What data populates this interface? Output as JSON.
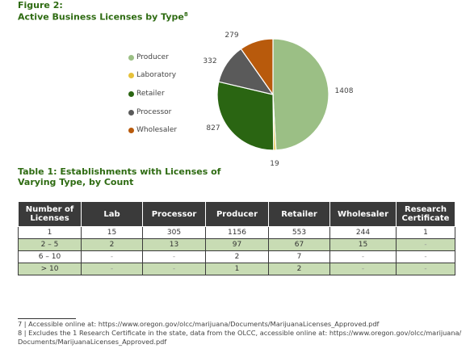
{
  "figure": {
    "label": "Figure 2:",
    "title": "Active Business Licenses by Type",
    "title_footnote_ref": "8"
  },
  "chart_data": {
    "type": "pie",
    "categories": [
      "Producer",
      "Laboratory",
      "Retailer",
      "Processor",
      "Wholesaler"
    ],
    "values": [
      1408,
      19,
      827,
      332,
      279
    ],
    "colors": [
      "#9bbf85",
      "#e6c13a",
      "#2a6512",
      "#5a5a5a",
      "#b85a0c"
    ],
    "labels_shown": [
      "1408",
      "19",
      "827",
      "332",
      "279"
    ],
    "legend_placement": "left"
  },
  "legend": [
    {
      "label": "Producer",
      "color": "#9bbf85"
    },
    {
      "label": "Laboratory",
      "color": "#e6c13a"
    },
    {
      "label": "Retailer",
      "color": "#2a6512"
    },
    {
      "label": "Processor",
      "color": "#5a5a5a"
    },
    {
      "label": "Wholesaler",
      "color": "#b85a0c"
    }
  ],
  "table": {
    "title_line1": "Table 1: Establishments with Licenses of",
    "title_line2": "Varying Type, by Count",
    "headers": [
      [
        "Number of",
        "Licenses"
      ],
      [
        "Lab"
      ],
      [
        "Processor"
      ],
      [
        "Producer"
      ],
      [
        "Retailer"
      ],
      [
        "Wholesaler"
      ],
      [
        "Research",
        "Certificate"
      ]
    ],
    "rows": [
      [
        "1",
        "15",
        "305",
        "1156",
        "553",
        "244",
        "1"
      ],
      [
        "2 – 5",
        "2",
        "13",
        "97",
        "67",
        "15",
        "-"
      ],
      [
        "6 – 10",
        "-",
        "-",
        "2",
        "7",
        "-",
        "-"
      ],
      [
        "> 10",
        "-",
        "-",
        "1",
        "2",
        "-",
        "-"
      ]
    ]
  },
  "footnotes": [
    "7 | Accessible online at: https://www.oregon.gov/olcc/marijuana/Documents/MarijuanaLicenses_Approved.pdf",
    "8 | Excludes the 1 Research Certificate in the state, data from the OLCC, accessible online at: https://www.oregon.gov/olcc/marijuana/",
    "Documents/MarijuanaLicenses_Approved.pdf"
  ]
}
